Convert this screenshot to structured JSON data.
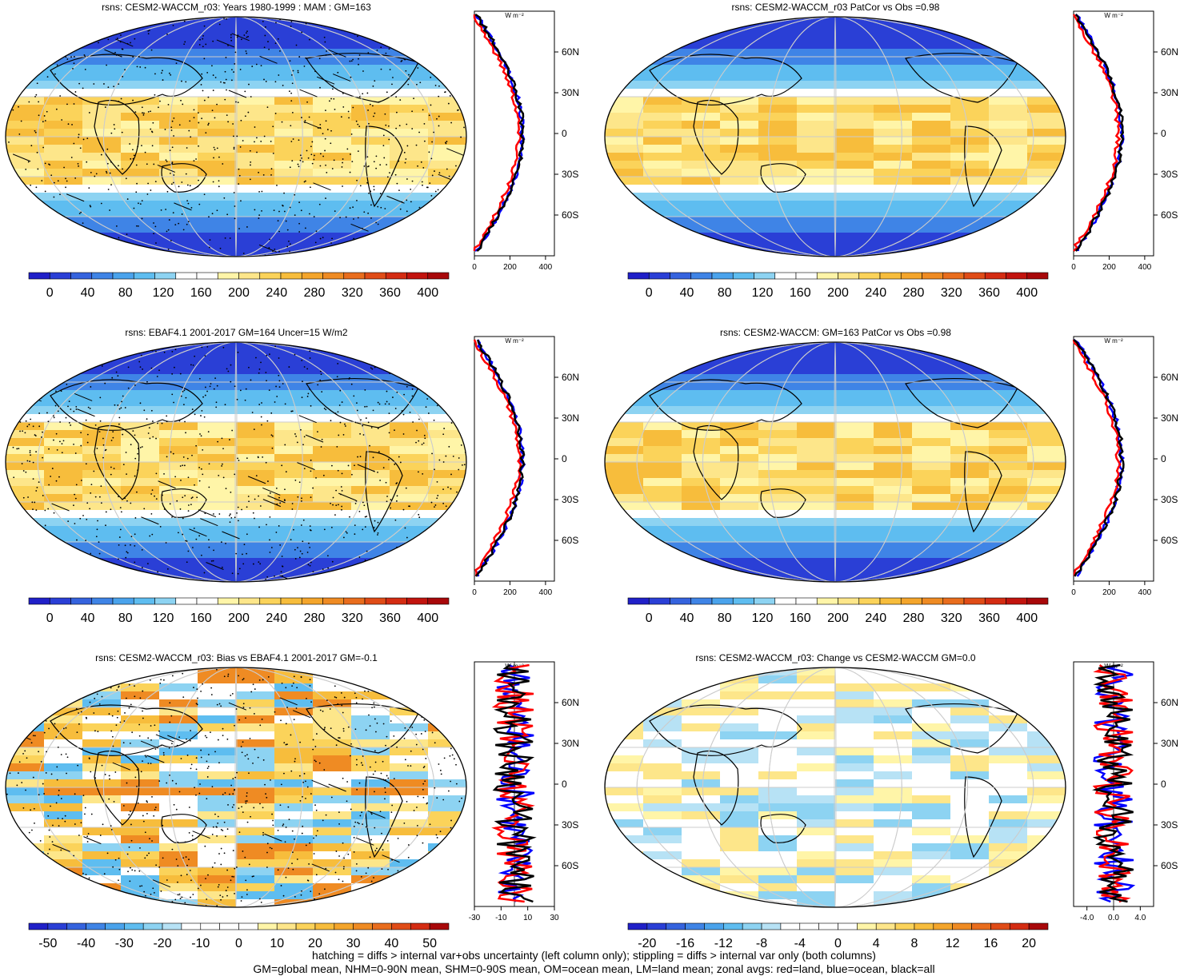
{
  "panels": [
    {
      "id": "tl",
      "title": "rsns: CESM2-WACCM_r03: Years 1980-1999 : MAM : GM=163",
      "colorbar": {
        "labels": [
          "0",
          "40",
          "80",
          "120",
          "160",
          "200",
          "240",
          "280",
          "320",
          "360",
          "400"
        ],
        "type": "absolute"
      },
      "profile": {
        "xticks": [
          "0",
          "200",
          "400"
        ],
        "xlim": [
          0,
          450
        ],
        "unit": "W m⁻²"
      },
      "map_style": "absolute",
      "hatching": true,
      "stippling": true
    },
    {
      "id": "tr",
      "title": "rsns: CESM2-WACCM_r03 PatCor vs Obs =0.98",
      "colorbar": {
        "labels": [
          "0",
          "40",
          "80",
          "120",
          "160",
          "200",
          "240",
          "280",
          "320",
          "360",
          "400"
        ],
        "type": "absolute"
      },
      "profile": {
        "xticks": [
          "0",
          "200",
          "400"
        ],
        "xlim": [
          0,
          450
        ],
        "unit": "W m⁻²"
      },
      "map_style": "absolute",
      "hatching": false,
      "stippling": false
    },
    {
      "id": "ml",
      "title": "rsns: EBAF4.1 2001-2017 GM=164 Uncer=15 W/m2",
      "colorbar": {
        "labels": [
          "0",
          "40",
          "80",
          "120",
          "160",
          "200",
          "240",
          "280",
          "320",
          "360",
          "400"
        ],
        "type": "absolute"
      },
      "profile": {
        "xticks": [
          "0",
          "200",
          "400"
        ],
        "xlim": [
          0,
          450
        ],
        "unit": "W m⁻²"
      },
      "map_style": "absolute",
      "hatching": true,
      "stippling": true
    },
    {
      "id": "mr",
      "title": "rsns: CESM2-WACCM: GM=163 PatCor vs Obs =0.98",
      "colorbar": {
        "labels": [
          "0",
          "40",
          "80",
          "120",
          "160",
          "200",
          "240",
          "280",
          "320",
          "360",
          "400"
        ],
        "type": "absolute"
      },
      "profile": {
        "xticks": [
          "0",
          "200",
          "400"
        ],
        "xlim": [
          0,
          450
        ],
        "unit": "W m⁻²"
      },
      "map_style": "absolute",
      "hatching": false,
      "stippling": false
    },
    {
      "id": "bl",
      "title": "rsns: CESM2-WACCM_r03: Bias vs EBAF4.1 2001-2017 GM=-0.1",
      "colorbar": {
        "labels": [
          "-50",
          "-40",
          "-30",
          "-20",
          "-10",
          "0",
          "10",
          "20",
          "30",
          "40",
          "50"
        ],
        "type": "diff"
      },
      "profile": {
        "xticks": [
          "-30",
          "-10",
          "10",
          "30"
        ],
        "xlim": [
          -30,
          30
        ],
        "unit": "W m⁻²"
      },
      "map_style": "bias",
      "hatching": true,
      "stippling": true
    },
    {
      "id": "br",
      "title": "rsns: CESM2-WACCM_r03: Change vs CESM2-WACCM GM=0.0",
      "colorbar": {
        "labels": [
          "-20",
          "-16",
          "-12",
          "-8",
          "-4",
          "0",
          "4",
          "8",
          "12",
          "16",
          "20"
        ],
        "type": "diff"
      },
      "profile": {
        "xticks": [
          "-4.0",
          "0.0",
          "4.0"
        ],
        "xlim": [
          -6,
          6
        ],
        "unit": "W m⁻²"
      },
      "map_style": "change",
      "hatching": false,
      "stippling": false
    }
  ],
  "lat_labels": [
    "60N",
    "30N",
    "0",
    "30S",
    "60S"
  ],
  "palettes": {
    "absolute": [
      "#2020c8",
      "#2a3fd6",
      "#3563de",
      "#3f84e6",
      "#4aa3ec",
      "#5ebdf0",
      "#8dd3f2",
      "#ffffff",
      "#ffffff",
      "#fff5a8",
      "#fde68a",
      "#fbd35a",
      "#f7bd3c",
      "#f4a52b",
      "#ef8b23",
      "#e96d1d",
      "#e04c17",
      "#d42c12",
      "#c2140e",
      "#a8080a"
    ],
    "diff": [
      "#2020c8",
      "#2a3fd6",
      "#3563de",
      "#3f84e6",
      "#4aa3ec",
      "#5ebdf0",
      "#8dd3f2",
      "#b7e2f5",
      "#ffffff",
      "#ffffff",
      "#ffffff",
      "#ffffff",
      "#fff5a8",
      "#fde68a",
      "#fbd35a",
      "#f7bd3c",
      "#f4a52b",
      "#ef8b23",
      "#e96d1d",
      "#e04c17",
      "#d42c12",
      "#a8080a"
    ]
  },
  "legend_colors": {
    "land": "#ff0000",
    "ocean": "#0000ff",
    "all": "#000000"
  },
  "footer": [
    "hatching = diffs > internal var+obs uncertainty (left column only); stippling = diffs > internal var only (both columns)",
    "GM=global mean, NHM=0-90N mean, SHM=0-90S mean, OM=ocean mean, LM=land mean; zonal avgs: red=land, blue=ocean, black=all"
  ]
}
